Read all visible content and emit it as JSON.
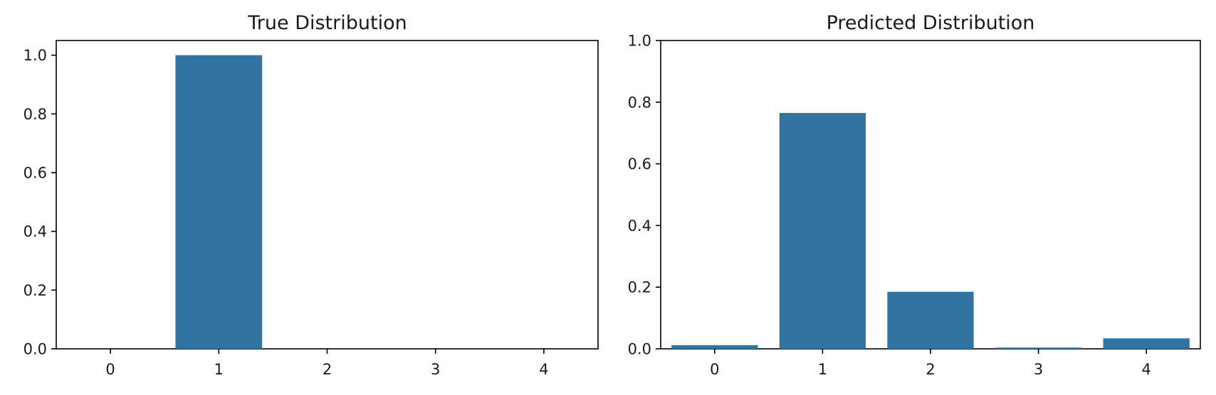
{
  "chart_data": [
    {
      "type": "bar",
      "title": "True Distribution",
      "categories": [
        "0",
        "1",
        "2",
        "3",
        "4"
      ],
      "values": [
        0.0,
        1.0,
        0.0,
        0.0,
        0.0
      ],
      "xlabel": "",
      "ylabel": "",
      "ylim": [
        0,
        1.05
      ],
      "yticks": [
        "0.0",
        "0.2",
        "0.4",
        "0.6",
        "0.8",
        "1.0"
      ],
      "bar_color": "#3274a1",
      "grid": false
    },
    {
      "type": "bar",
      "title": "Predicted Distribution",
      "categories": [
        "0",
        "1",
        "2",
        "3",
        "4"
      ],
      "values": [
        0.012,
        0.765,
        0.185,
        0.004,
        0.034
      ],
      "xlabel": "",
      "ylabel": "",
      "ylim": [
        0,
        1.0
      ],
      "yticks": [
        "0.0",
        "0.2",
        "0.4",
        "0.6",
        "0.8",
        "1.0"
      ],
      "bar_color": "#3274a1",
      "grid": false
    }
  ]
}
